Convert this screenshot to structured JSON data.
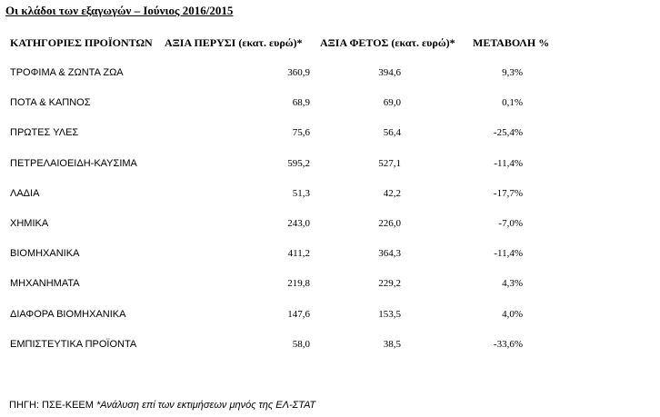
{
  "title": "Οι κλάδοι των εξαγωγών – Ιούνιος 2016/2015",
  "table": {
    "headers": {
      "category": "ΚΑΤΗΓΟΡΙΕΣ ΠΡΟΪΟΝΤΩΝ",
      "last_year": "ΑΞΙΑ ΠΕΡΥΣΙ (εκατ. ευρώ)*",
      "this_year": "ΑΞΙΑ ΦΕΤΟΣ (εκατ. ευρώ)*",
      "change": "ΜΕΤΑΒΟΛΗ %"
    },
    "rows": [
      {
        "category": "ΤΡΟΦΙΜΑ & ΖΩΝΤΑ ΖΩΑ",
        "last_year": "360,9",
        "this_year": "394,6",
        "change": "9,3%"
      },
      {
        "category": "ΠΟΤΑ & ΚΑΠΝΟΣ",
        "last_year": "68,9",
        "this_year": "69,0",
        "change": "0,1%"
      },
      {
        "category": "ΠΡΩΤΕΣ ΥΛΕΣ",
        "last_year": "75,6",
        "this_year": "56,4",
        "change": "-25,4%"
      },
      {
        "category": "ΠΕΤΡΕΛΑΙΟΕΙΔΗ-ΚΑΥΣΙΜΑ",
        "last_year": "595,2",
        "this_year": "527,1",
        "change": "-11,4%"
      },
      {
        "category": "ΛΑΔΙΑ",
        "last_year": "51,3",
        "this_year": "42,2",
        "change": "-17,7%"
      },
      {
        "category": "ΧΗΜΙΚΑ",
        "last_year": "243,0",
        "this_year": "226,0",
        "change": "-7,0%"
      },
      {
        "category": "ΒΙΟΜΗΧΑΝΙΚΑ",
        "last_year": "411,2",
        "this_year": "364,3",
        "change": "-11,4%"
      },
      {
        "category": "ΜΗΧΑΝΗΜΑΤΑ",
        "last_year": "219,8",
        "this_year": "229,2",
        "change": "4,3%"
      },
      {
        "category": "ΔΙΑΦΟΡΑ ΒΙΟΜΗΧΑΝΙΚΑ",
        "last_year": "147,6",
        "this_year": "153,5",
        "change": "4,0%"
      },
      {
        "category": "ΕΜΠΙΣΤΕΥΤΙΚΑ ΠΡΟΪΟΝΤΑ",
        "last_year": "58,0",
        "this_year": "38,5",
        "change": "-33,6%"
      }
    ]
  },
  "footer": {
    "source": "ΠΗΓΗ: ΠΣΕ-ΚΕΕΜ",
    "note": "*Ανάλυση επί των εκτιμήσεων μηνός της ΕΛ-ΣΤΑΤ"
  }
}
